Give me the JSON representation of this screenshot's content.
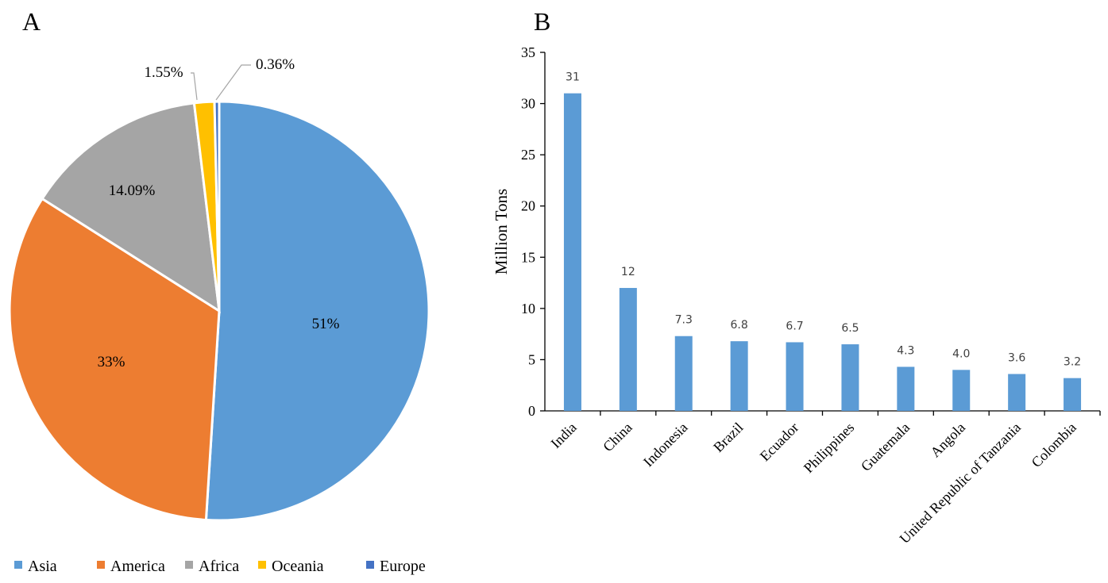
{
  "panels": {
    "a_letter": "A",
    "b_letter": "B"
  },
  "chart_data": [
    {
      "type": "pie",
      "categories": [
        "Asia",
        "America",
        "Africa",
        "Oceania",
        "Europe"
      ],
      "values": [
        51,
        33,
        14.09,
        1.55,
        0.36
      ],
      "labels": [
        "51%",
        "33%",
        "14.09%",
        "1.55%",
        "0.36%"
      ],
      "colors": [
        "#5B9BD5",
        "#ED7D31",
        "#A5A5A5",
        "#FFC000",
        "#4472C4"
      ],
      "legend_position": "bottom",
      "start": "12 o'clock, clockwise"
    },
    {
      "type": "bar",
      "categories": [
        "India",
        "China",
        "Indonesia",
        "Brazil",
        "Ecuador",
        "Philippines",
        "Guatemala",
        "Angola",
        "United Republic of Tanzania",
        "Colombia"
      ],
      "values": [
        31,
        12,
        7.3,
        6.8,
        6.7,
        6.5,
        4.3,
        4.0,
        3.6,
        3.2
      ],
      "value_labels": [
        "31",
        "12",
        "7.3",
        "6.8",
        "6.7",
        "6.5",
        "4.3",
        "4.0",
        "3.6",
        "3.2"
      ],
      "ylabel": "Million  Tons",
      "ylim": [
        0,
        35
      ],
      "yticks": [
        0,
        5,
        10,
        15,
        20,
        25,
        30,
        35
      ],
      "bar_color": "#5B9BD5",
      "grid": false
    }
  ]
}
